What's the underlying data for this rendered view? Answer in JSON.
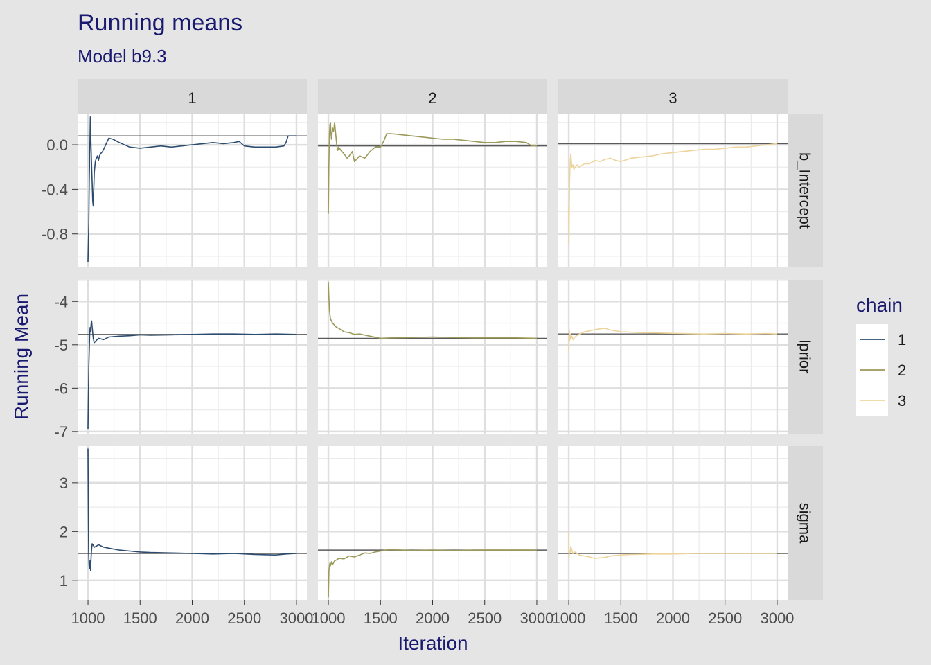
{
  "chart_data": {
    "type": "line",
    "title": "Running means",
    "subtitle": "Model b9.3",
    "xlabel": "Iteration",
    "ylabel": "Running Mean",
    "xlim": [
      900,
      3100
    ],
    "x_ticks": [
      1000,
      1500,
      2000,
      2500,
      3000
    ],
    "x_tick_labels": [
      "1000",
      "1500",
      "2000",
      "2500",
      "3000"
    ],
    "grid": true,
    "facet_columns": [
      "1",
      "2",
      "3"
    ],
    "legend": {
      "title": "chain",
      "position": "right",
      "entries": [
        {
          "label": "1",
          "color": "#2b4c6f"
        },
        {
          "label": "2",
          "color": "#9c9a5a"
        },
        {
          "label": "3",
          "color": "#edd49c"
        }
      ]
    },
    "rows": [
      {
        "name": "b_Intercept",
        "ylim": [
          -1.1,
          0.28
        ],
        "y_ticks": [
          0.0,
          -0.4,
          -0.8
        ],
        "y_tick_labels": [
          "0.0",
          "-0.4",
          "-0.8"
        ],
        "chains": [
          {
            "chain": "1",
            "ref": 0.08,
            "x": [
              1000,
              1008,
              1012,
              1018,
              1022,
              1026,
              1030,
              1035,
              1040,
              1045,
              1050,
              1055,
              1060,
              1070,
              1080,
              1090,
              1100,
              1110,
              1120,
              1140,
              1160,
              1180,
              1200,
              1240,
              1300,
              1400,
              1500,
              1600,
              1700,
              1800,
              1900,
              2000,
              2100,
              2200,
              2300,
              2400,
              2450,
              2500,
              2600,
              2700,
              2800,
              2880,
              2900,
              2920,
              3000
            ],
            "y": [
              -1.05,
              -0.7,
              -0.3,
              0.0,
              0.25,
              0.1,
              -0.05,
              -0.2,
              -0.35,
              -0.5,
              -0.55,
              -0.4,
              -0.25,
              -0.15,
              -0.12,
              -0.1,
              -0.14,
              -0.1,
              -0.08,
              -0.06,
              -0.02,
              0.02,
              0.06,
              0.05,
              0.02,
              -0.02,
              -0.03,
              -0.02,
              -0.01,
              -0.02,
              -0.01,
              0.0,
              0.01,
              0.02,
              0.01,
              0.02,
              0.03,
              -0.01,
              -0.02,
              -0.02,
              -0.02,
              -0.01,
              0.02,
              0.08,
              0.08
            ]
          },
          {
            "chain": "2",
            "ref": -0.01,
            "x": [
              1000,
              1005,
              1010,
              1015,
              1020,
              1025,
              1030,
              1040,
              1050,
              1060,
              1070,
              1080,
              1090,
              1100,
              1120,
              1150,
              1180,
              1200,
              1230,
              1250,
              1300,
              1350,
              1400,
              1450,
              1500,
              1530,
              1560,
              1600,
              1700,
              1800,
              1900,
              2000,
              2100,
              2200,
              2300,
              2400,
              2500,
              2600,
              2700,
              2800,
              2900,
              2950,
              3000
            ],
            "y": [
              -0.62,
              -0.2,
              0.1,
              0.18,
              0.2,
              0.1,
              0.05,
              0.15,
              0.12,
              0.2,
              0.1,
              0.0,
              -0.05,
              -0.02,
              -0.05,
              -0.08,
              -0.12,
              -0.1,
              -0.06,
              -0.15,
              -0.1,
              -0.12,
              -0.06,
              -0.02,
              -0.02,
              0.03,
              0.1,
              0.1,
              0.09,
              0.08,
              0.07,
              0.06,
              0.05,
              0.05,
              0.04,
              0.03,
              0.02,
              0.02,
              0.03,
              0.03,
              0.02,
              -0.01,
              -0.01
            ]
          },
          {
            "chain": "3",
            "ref": 0.01,
            "x": [
              1000,
              1002,
              1005,
              1008,
              1012,
              1016,
              1020,
              1025,
              1030,
              1040,
              1050,
              1060,
              1080,
              1100,
              1150,
              1200,
              1250,
              1300,
              1350,
              1400,
              1450,
              1500,
              1600,
              1700,
              1800,
              1900,
              2000,
              2100,
              2200,
              2300,
              2400,
              2500,
              2600,
              2700,
              2800,
              2900,
              3000
            ],
            "y": [
              -0.55,
              -0.9,
              -0.6,
              -0.35,
              -0.2,
              -0.12,
              -0.08,
              -0.14,
              -0.2,
              -0.18,
              -0.22,
              -0.2,
              -0.18,
              -0.2,
              -0.17,
              -0.17,
              -0.14,
              -0.15,
              -0.13,
              -0.12,
              -0.14,
              -0.15,
              -0.12,
              -0.11,
              -0.1,
              -0.08,
              -0.07,
              -0.06,
              -0.05,
              -0.04,
              -0.04,
              -0.03,
              -0.02,
              -0.02,
              -0.01,
              0.0,
              0.01
            ]
          }
        ]
      },
      {
        "name": "lprior",
        "ylim": [
          -7.05,
          -3.5
        ],
        "y_ticks": [
          -4,
          -5,
          -6,
          -7
        ],
        "y_tick_labels": [
          "-4",
          "-5",
          "-6",
          "-7"
        ],
        "chains": [
          {
            "chain": "1",
            "ref": -4.76,
            "x": [
              1000,
              1004,
              1008,
              1012,
              1016,
              1020,
              1025,
              1030,
              1035,
              1040,
              1050,
              1060,
              1080,
              1100,
              1150,
              1200,
              1300,
              1400,
              1500,
              1600,
              1800,
              2000,
              2200,
              2400,
              2600,
              2800,
              3000
            ],
            "y": [
              -6.95,
              -6.2,
              -5.5,
              -5.1,
              -4.75,
              -4.6,
              -4.7,
              -4.5,
              -4.45,
              -4.6,
              -4.85,
              -4.95,
              -4.9,
              -4.85,
              -4.88,
              -4.82,
              -4.8,
              -4.79,
              -4.77,
              -4.78,
              -4.77,
              -4.76,
              -4.75,
              -4.75,
              -4.76,
              -4.75,
              -4.76
            ]
          },
          {
            "chain": "2",
            "ref": -4.85,
            "x": [
              1000,
              1005,
              1010,
              1015,
              1020,
              1030,
              1040,
              1060,
              1080,
              1100,
              1150,
              1200,
              1250,
              1300,
              1400,
              1500,
              1600,
              1800,
              2000,
              2200,
              2400,
              2600,
              2800,
              3000
            ],
            "y": [
              -3.55,
              -3.9,
              -4.2,
              -4.3,
              -4.4,
              -4.45,
              -4.5,
              -4.55,
              -4.6,
              -4.62,
              -4.7,
              -4.72,
              -4.76,
              -4.75,
              -4.8,
              -4.85,
              -4.84,
              -4.83,
              -4.82,
              -4.83,
              -4.84,
              -4.84,
              -4.84,
              -4.85
            ]
          },
          {
            "chain": "3",
            "ref": -4.75,
            "x": [
              1000,
              1005,
              1010,
              1015,
              1020,
              1030,
              1040,
              1060,
              1080,
              1100,
              1150,
              1200,
              1250,
              1300,
              1350,
              1400,
              1500,
              1700,
              1900,
              2100,
              2300,
              2500,
              2700,
              2900,
              3000
            ],
            "y": [
              -5.15,
              -4.65,
              -4.9,
              -4.75,
              -4.85,
              -4.8,
              -4.88,
              -4.82,
              -4.78,
              -4.76,
              -4.7,
              -4.68,
              -4.65,
              -4.63,
              -4.62,
              -4.66,
              -4.7,
              -4.72,
              -4.73,
              -4.74,
              -4.75,
              -4.74,
              -4.75,
              -4.74,
              -4.75
            ]
          }
        ]
      },
      {
        "name": "sigma",
        "ylim": [
          0.6,
          3.75
        ],
        "y_ticks": [
          3,
          2,
          1
        ],
        "y_tick_labels": [
          "3",
          "2",
          "1"
        ],
        "chains": [
          {
            "chain": "1",
            "ref": 1.55,
            "x": [
              1000,
              1003,
              1006,
              1010,
              1015,
              1020,
              1025,
              1030,
              1035,
              1040,
              1050,
              1060,
              1080,
              1100,
              1150,
              1200,
              1300,
              1400,
              1500,
              1600,
              1800,
              2000,
              2200,
              2400,
              2600,
              2800,
              2900,
              3000
            ],
            "y": [
              3.7,
              2.5,
              1.6,
              1.3,
              1.25,
              1.4,
              1.2,
              1.5,
              1.65,
              1.75,
              1.72,
              1.68,
              1.7,
              1.73,
              1.68,
              1.66,
              1.62,
              1.6,
              1.58,
              1.57,
              1.56,
              1.55,
              1.54,
              1.55,
              1.53,
              1.52,
              1.54,
              1.55
            ]
          },
          {
            "chain": "2",
            "ref": 1.62,
            "x": [
              1000,
              1003,
              1006,
              1010,
              1015,
              1020,
              1030,
              1040,
              1060,
              1080,
              1100,
              1150,
              1200,
              1250,
              1300,
              1350,
              1400,
              1450,
              1500,
              1550,
              1600,
              1700,
              1800,
              2000,
              2200,
              2400,
              2600,
              2800,
              3000
            ],
            "y": [
              0.65,
              0.95,
              1.2,
              1.3,
              1.35,
              1.3,
              1.38,
              1.32,
              1.4,
              1.42,
              1.45,
              1.44,
              1.5,
              1.48,
              1.52,
              1.56,
              1.55,
              1.58,
              1.6,
              1.62,
              1.63,
              1.62,
              1.61,
              1.62,
              1.61,
              1.62,
              1.62,
              1.62,
              1.62
            ]
          },
          {
            "chain": "3",
            "ref": 1.55,
            "x": [
              1000,
              1003,
              1006,
              1010,
              1015,
              1020,
              1030,
              1040,
              1060,
              1080,
              1100,
              1150,
              1200,
              1250,
              1300,
              1350,
              1400,
              1500,
              1600,
              1800,
              2000,
              2200,
              2400,
              2600,
              2800,
              3000
            ],
            "y": [
              2.0,
              1.45,
              1.55,
              1.6,
              1.58,
              1.7,
              1.62,
              1.55,
              1.58,
              1.55,
              1.52,
              1.5,
              1.48,
              1.45,
              1.46,
              1.47,
              1.5,
              1.52,
              1.53,
              1.54,
              1.54,
              1.55,
              1.55,
              1.55,
              1.55,
              1.55
            ]
          }
        ]
      }
    ]
  }
}
